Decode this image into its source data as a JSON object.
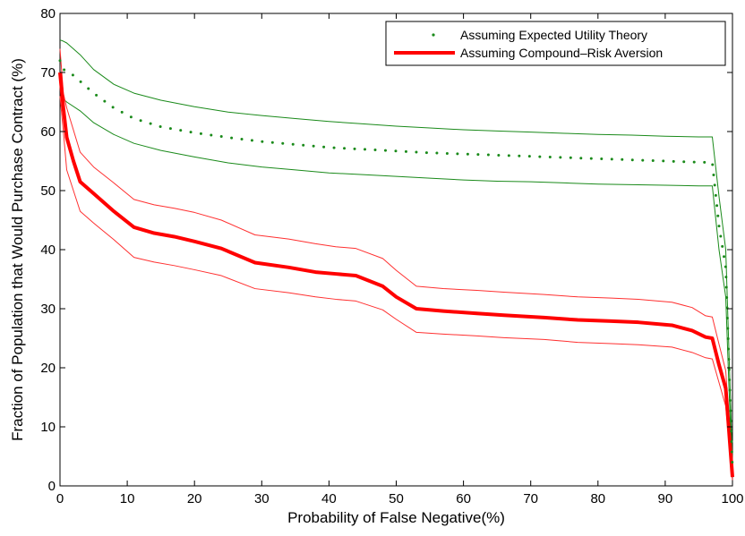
{
  "chart_data": {
    "type": "line",
    "xlabel": "Probability of False Negative(%)",
    "ylabel": "Fraction of Population that Would Purchase Contract (%)",
    "xlim": [
      0,
      100
    ],
    "ylim": [
      0,
      80
    ],
    "xticks": [
      "0",
      "10",
      "20",
      "30",
      "40",
      "50",
      "60",
      "70",
      "80",
      "90",
      "100"
    ],
    "yticks": [
      "0",
      "10",
      "20",
      "30",
      "40",
      "50",
      "60",
      "70",
      "80"
    ],
    "grid": false,
    "legend_position": "top-right",
    "colors": {
      "eu": "#1a8a1a",
      "cra": "#ff0000",
      "cra_band": "#ff3030"
    },
    "series": [
      {
        "name": "Assuming Expected Utility Theory",
        "role": "eu_mean",
        "style": "dotted",
        "x": [
          0,
          0.5,
          1,
          2,
          3,
          5,
          8,
          11,
          15,
          20,
          25,
          30,
          35,
          40,
          45,
          50,
          55,
          60,
          65,
          70,
          75,
          80,
          85,
          90,
          95,
          97,
          98,
          99,
          99.5,
          100
        ],
        "y": [
          72,
          70.5,
          70.3,
          69.5,
          68.5,
          66.5,
          64,
          62.2,
          60.8,
          59.8,
          59,
          58.3,
          57.8,
          57.3,
          57,
          56.7,
          56.4,
          56.2,
          56,
          55.8,
          55.6,
          55.4,
          55.2,
          55.0,
          54.8,
          54.8,
          44,
          37,
          20,
          3
        ]
      },
      {
        "role": "eu_upper",
        "style": "thin",
        "x": [
          0,
          0.5,
          1,
          3,
          5,
          8,
          11,
          15,
          20,
          25,
          30,
          35,
          40,
          45,
          50,
          55,
          60,
          65,
          70,
          75,
          80,
          85,
          90,
          95,
          97,
          98,
          99,
          99.5,
          100
        ],
        "y": [
          75.5,
          75.3,
          75,
          73,
          70.5,
          68,
          66.5,
          65.3,
          64.2,
          63.3,
          62.7,
          62.2,
          61.7,
          61.3,
          60.9,
          60.6,
          60.3,
          60.1,
          59.9,
          59.7,
          59.5,
          59.4,
          59.2,
          59.1,
          59.1,
          49,
          40,
          22,
          4
        ]
      },
      {
        "role": "eu_lower",
        "style": "thin",
        "x": [
          0,
          0.5,
          1,
          3,
          5,
          8,
          11,
          15,
          20,
          25,
          30,
          35,
          40,
          45,
          50,
          55,
          60,
          65,
          70,
          75,
          80,
          85,
          90,
          95,
          97,
          98,
          99,
          99.5,
          100
        ],
        "y": [
          66,
          65.5,
          65,
          63.5,
          61.5,
          59.5,
          58,
          56.8,
          55.7,
          54.7,
          54,
          53.5,
          53,
          52.7,
          52.4,
          52.1,
          51.8,
          51.6,
          51.5,
          51.3,
          51.1,
          51,
          50.9,
          50.8,
          50.8,
          40,
          32,
          16,
          2
        ]
      },
      {
        "name": "Assuming Compound–Risk Aversion",
        "role": "cra_mean",
        "style": "thick",
        "x": [
          0,
          0.5,
          1,
          2,
          3,
          5,
          8,
          11,
          14,
          17,
          20,
          24,
          29,
          34,
          38,
          41,
          44,
          48,
          50,
          53,
          57,
          62,
          66,
          72,
          77,
          82,
          86,
          91,
          94,
          96,
          97,
          98,
          99,
          100
        ],
        "y": [
          70,
          64,
          59,
          55,
          51.5,
          49.5,
          46.5,
          43.8,
          42.8,
          42.2,
          41.4,
          40.2,
          37.8,
          37,
          36.2,
          35.9,
          35.6,
          33.8,
          32,
          30,
          29.6,
          29.2,
          28.9,
          28.5,
          28.1,
          27.9,
          27.7,
          27.2,
          26.3,
          25.2,
          25,
          20.5,
          16.5,
          1.5
        ]
      },
      {
        "role": "cra_upper",
        "style": "thin",
        "x": [
          0,
          0.5,
          1,
          3,
          5,
          8,
          11,
          14,
          17,
          20,
          24,
          29,
          34,
          38,
          41,
          44,
          48,
          50,
          53,
          57,
          62,
          66,
          72,
          77,
          82,
          86,
          91,
          94,
          96,
          97,
          98,
          99,
          100
        ],
        "y": [
          74,
          66.5,
          64,
          56.5,
          54,
          51.3,
          48.5,
          47.6,
          47,
          46.3,
          45,
          42.5,
          41.8,
          41,
          40.5,
          40.2,
          38.5,
          36.5,
          33.8,
          33.4,
          33.1,
          32.8,
          32.4,
          32,
          31.8,
          31.6,
          31.1,
          30.2,
          28.8,
          28.6,
          24,
          19.5,
          2.5
        ]
      },
      {
        "role": "cra_lower",
        "style": "thin",
        "x": [
          0,
          0.5,
          1,
          3,
          5,
          8,
          11,
          14,
          17,
          20,
          24,
          29,
          34,
          38,
          41,
          44,
          48,
          50,
          53,
          57,
          62,
          66,
          72,
          77,
          82,
          86,
          91,
          94,
          96,
          97,
          98,
          99,
          100
        ],
        "y": [
          66,
          60,
          53.5,
          46.5,
          44.5,
          41.7,
          38.7,
          37.9,
          37.3,
          36.6,
          35.6,
          33.4,
          32.7,
          32,
          31.6,
          31.3,
          29.8,
          28.2,
          26,
          25.7,
          25.4,
          25.1,
          24.8,
          24.3,
          24.1,
          23.9,
          23.5,
          22.6,
          21.7,
          21.5,
          17.5,
          13.5,
          1
        ]
      }
    ]
  }
}
